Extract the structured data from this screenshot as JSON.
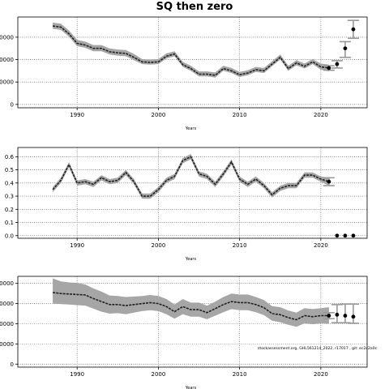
{
  "page": {
    "title": "SQ then zero",
    "credit": "stockassessment.org, GHL561214_2022, r17017 , git: ec2c2a0c"
  },
  "style": {
    "line_color": "#222222",
    "band_color": "#a6a6a6",
    "grid_color": "#555555"
  },
  "chart_data": [
    {
      "type": "line",
      "title": "",
      "xlabel": "Years",
      "ylabel": "",
      "xlim": [
        1982.7,
        2025.7
      ],
      "ylim": [
        -3000,
        78000
      ],
      "grid": true,
      "legend": "none",
      "x_ticks": [
        1990,
        2000,
        2010,
        2020
      ],
      "y_ticks": [
        0,
        20000,
        40000,
        60000
      ],
      "y_tick_labels": [
        "0",
        "20000",
        "40000",
        "60000"
      ],
      "series": [
        {
          "x": [
            1987,
            1988,
            1989,
            1990,
            1991,
            1992,
            1993,
            1994,
            1995,
            1996,
            1997,
            1998,
            1999,
            2000,
            2001,
            2002,
            2003,
            2004,
            2005,
            2006,
            2007,
            2008,
            2009,
            2010,
            2011,
            2012,
            2013,
            2014,
            2015,
            2016,
            2017,
            2018,
            2019,
            2020,
            2021
          ],
          "y": [
            70000,
            69000,
            63000,
            54500,
            53000,
            50000,
            50000,
            47000,
            46000,
            45500,
            42000,
            38000,
            37500,
            38000,
            43000,
            45000,
            35500,
            32000,
            27000,
            27000,
            26000,
            32000,
            30000,
            26500,
            28000,
            31000,
            30000,
            36000,
            42000,
            32000,
            37000,
            34000,
            38000,
            33500,
            32500
          ],
          "lower": [
            67500,
            66500,
            60500,
            52000,
            50500,
            47500,
            47500,
            44500,
            43500,
            43000,
            39500,
            36000,
            35500,
            36000,
            41000,
            43000,
            33500,
            30000,
            25000,
            25000,
            24000,
            30000,
            28000,
            24500,
            26000,
            29000,
            28000,
            34000,
            40000,
            30000,
            35000,
            32000,
            36000,
            31000,
            29500
          ],
          "upper": [
            73000,
            72000,
            66000,
            57500,
            56000,
            53000,
            53000,
            50000,
            49000,
            48500,
            45000,
            40500,
            40000,
            40500,
            45500,
            47500,
            38000,
            34500,
            29500,
            29500,
            28500,
            34500,
            32500,
            29000,
            30500,
            33500,
            32500,
            38500,
            44500,
            34500,
            39500,
            36500,
            40500,
            36500,
            35500
          ]
        }
      ],
      "forecast": {
        "x": [
          2021,
          2022,
          2023,
          2024
        ],
        "y": [
          32500,
          36000,
          50000,
          67000
        ],
        "lower": [
          30500,
          32500,
          42000,
          59000
        ],
        "upper": [
          34500,
          39000,
          56000,
          75000
        ]
      }
    },
    {
      "type": "line",
      "title": "",
      "xlabel": "Years",
      "ylabel": "",
      "xlim": [
        1982.7,
        2025.7
      ],
      "ylim": [
        -0.02,
        0.67
      ],
      "grid": true,
      "legend": "none",
      "x_ticks": [
        1990,
        2000,
        2010,
        2020
      ],
      "y_ticks": [
        0.0,
        0.1,
        0.2,
        0.3,
        0.4,
        0.5,
        0.6
      ],
      "y_tick_labels": [
        "0.0",
        "0.1",
        "0.2",
        "0.3",
        "0.4",
        "0.5",
        "0.6"
      ],
      "series": [
        {
          "x": [
            1987,
            1988,
            1989,
            1990,
            1991,
            1992,
            1993,
            1994,
            1995,
            1996,
            1997,
            1998,
            1999,
            2000,
            2001,
            2002,
            2003,
            2004,
            2005,
            2006,
            2007,
            2008,
            2009,
            2010,
            2011,
            2012,
            2013,
            2014,
            2015,
            2016,
            2017,
            2018,
            2019,
            2020,
            2021
          ],
          "y": [
            0.35,
            0.42,
            0.54,
            0.4,
            0.41,
            0.39,
            0.44,
            0.41,
            0.42,
            0.48,
            0.41,
            0.3,
            0.3,
            0.35,
            0.42,
            0.45,
            0.57,
            0.6,
            0.47,
            0.45,
            0.39,
            0.47,
            0.56,
            0.43,
            0.39,
            0.43,
            0.38,
            0.31,
            0.36,
            0.38,
            0.38,
            0.46,
            0.46,
            0.43,
            0.41
          ],
          "lower": [
            0.33,
            0.4,
            0.52,
            0.38,
            0.39,
            0.37,
            0.42,
            0.39,
            0.4,
            0.46,
            0.39,
            0.28,
            0.28,
            0.33,
            0.4,
            0.43,
            0.55,
            0.58,
            0.45,
            0.43,
            0.37,
            0.45,
            0.54,
            0.41,
            0.37,
            0.41,
            0.36,
            0.29,
            0.34,
            0.36,
            0.36,
            0.44,
            0.44,
            0.41,
            0.38
          ],
          "upper": [
            0.37,
            0.44,
            0.56,
            0.42,
            0.43,
            0.41,
            0.46,
            0.43,
            0.44,
            0.5,
            0.43,
            0.32,
            0.32,
            0.37,
            0.44,
            0.47,
            0.59,
            0.62,
            0.49,
            0.47,
            0.41,
            0.49,
            0.58,
            0.45,
            0.41,
            0.45,
            0.4,
            0.33,
            0.38,
            0.4,
            0.4,
            0.48,
            0.48,
            0.45,
            0.44
          ]
        }
      ],
      "forecast": {
        "x": [
          2021,
          2022,
          2023,
          2024
        ],
        "y": [
          0.41,
          0.0,
          0.0,
          0.0
        ],
        "lower": [
          0.38,
          0.0,
          0.0,
          0.0
        ],
        "upper": [
          0.44,
          0.0,
          0.0,
          0.0
        ]
      }
    },
    {
      "type": "line",
      "title": "",
      "xlabel": "Years",
      "ylabel": "",
      "xlim": [
        1982.7,
        2025.7
      ],
      "ylim": [
        -3000,
        87000
      ],
      "grid": true,
      "legend": "none",
      "x_ticks": [
        1990,
        2000,
        2010,
        2020
      ],
      "y_ticks": [
        0,
        20000,
        40000,
        60000,
        80000
      ],
      "y_tick_labels": [
        "0",
        "20000",
        "40000",
        "60000",
        "80000"
      ],
      "series": [
        {
          "x": [
            1987,
            1988,
            1989,
            1990,
            1991,
            1992,
            1993,
            1994,
            1995,
            1996,
            1997,
            1998,
            1999,
            2000,
            2001,
            2002,
            2003,
            2004,
            2005,
            2006,
            2007,
            2008,
            2009,
            2010,
            2011,
            2012,
            2013,
            2014,
            2015,
            2016,
            2017,
            2018,
            2019,
            2020,
            2021
          ],
          "y": [
            71000,
            70000,
            69500,
            69000,
            68500,
            65000,
            62000,
            59000,
            59000,
            58000,
            59000,
            60000,
            61000,
            60000,
            57000,
            52000,
            57000,
            54000,
            54000,
            51000,
            55000,
            59000,
            62000,
            61000,
            61000,
            59000,
            56000,
            50000,
            49000,
            46000,
            44000,
            48000,
            47000,
            48000,
            48000
          ],
          "lower": [
            60000,
            59500,
            59000,
            58500,
            58000,
            55000,
            52000,
            50000,
            50500,
            49500,
            51000,
            52500,
            53500,
            52500,
            49500,
            45000,
            49500,
            47000,
            47000,
            44500,
            48000,
            51500,
            54500,
            53500,
            53500,
            51500,
            48500,
            43000,
            41500,
            39000,
            37000,
            40500,
            39500,
            40500,
            40000
          ],
          "upper": [
            85000,
            82000,
            81000,
            80500,
            79000,
            75000,
            72000,
            68000,
            67500,
            66500,
            67000,
            67500,
            68500,
            67500,
            64500,
            59000,
            64500,
            61000,
            61000,
            58000,
            62000,
            66500,
            70000,
            69000,
            69000,
            66500,
            63500,
            57500,
            56500,
            53000,
            51000,
            55500,
            54500,
            55500,
            56500
          ]
        }
      ],
      "forecast": {
        "x": [
          2021,
          2022,
          2023,
          2024
        ],
        "y": [
          48000,
          49000,
          48000,
          47000
        ],
        "lower": [
          45000,
          41000,
          41000,
          40500
        ],
        "upper": [
          51000,
          59000,
          59500,
          59500
        ]
      }
    }
  ]
}
